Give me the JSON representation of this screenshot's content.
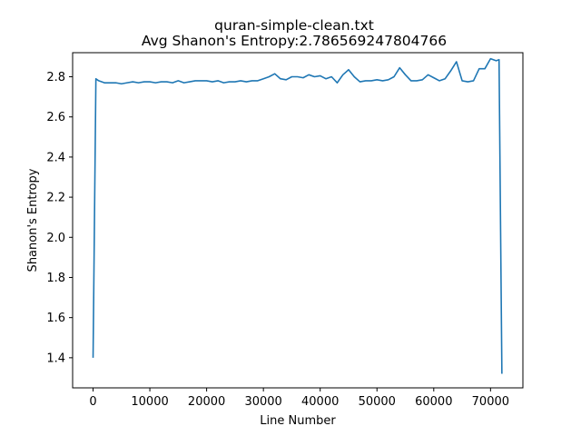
{
  "chart_data": {
    "type": "line",
    "title": "quran-simple-clean.txt",
    "subtitle": "Avg Shanon's Entropy:2.786569247804766",
    "xlabel": "Line Number",
    "ylabel": "Shanon's Entropy",
    "xlim": [
      -3600,
      75700
    ],
    "ylim": [
      1.25,
      2.92
    ],
    "xticks": [
      0,
      10000,
      20000,
      30000,
      40000,
      50000,
      60000,
      70000
    ],
    "xtick_labels": [
      "0",
      "10000",
      "20000",
      "30000",
      "40000",
      "50000",
      "60000",
      "70000"
    ],
    "yticks": [
      1.4,
      1.6,
      1.8,
      2.0,
      2.2,
      2.4,
      2.6,
      2.8
    ],
    "ytick_labels": [
      "1.4",
      "1.6",
      "1.8",
      "2.0",
      "2.2",
      "2.4",
      "2.6",
      "2.8"
    ],
    "grid": false,
    "line_color": "#1f77b4",
    "series": [
      {
        "x": [
          0,
          500,
          1000,
          2000,
          3000,
          4000,
          5000,
          6000,
          7000,
          8000,
          9000,
          10000,
          11000,
          12000,
          13000,
          14000,
          15000,
          16000,
          17000,
          18000,
          19000,
          20000,
          21000,
          22000,
          23000,
          24000,
          25000,
          26000,
          27000,
          28000,
          29000,
          30000,
          31000,
          32000,
          33000,
          34000,
          35000,
          36000,
          37000,
          38000,
          39000,
          40000,
          41000,
          42000,
          43000,
          44000,
          45000,
          46000,
          47000,
          48000,
          49000,
          50000,
          51000,
          52000,
          53000,
          54000,
          55000,
          56000,
          57000,
          58000,
          59000,
          60000,
          61000,
          62000,
          63000,
          64000,
          65000,
          66000,
          67000,
          68000,
          69000,
          70000,
          71000,
          71500,
          72000
        ],
        "y": [
          1.4,
          2.79,
          2.78,
          2.77,
          2.77,
          2.77,
          2.765,
          2.77,
          2.775,
          2.77,
          2.775,
          2.775,
          2.77,
          2.775,
          2.775,
          2.77,
          2.78,
          2.77,
          2.775,
          2.78,
          2.78,
          2.78,
          2.775,
          2.78,
          2.77,
          2.775,
          2.775,
          2.78,
          2.775,
          2.78,
          2.78,
          2.79,
          2.8,
          2.815,
          2.79,
          2.785,
          2.8,
          2.8,
          2.795,
          2.81,
          2.8,
          2.805,
          2.79,
          2.8,
          2.77,
          2.81,
          2.835,
          2.8,
          2.775,
          2.78,
          2.78,
          2.785,
          2.78,
          2.785,
          2.8,
          2.845,
          2.81,
          2.78,
          2.78,
          2.785,
          2.81,
          2.795,
          2.78,
          2.79,
          2.83,
          2.875,
          2.78,
          2.775,
          2.78,
          2.84,
          2.84,
          2.89,
          2.88,
          2.885,
          1.32
        ]
      }
    ]
  }
}
